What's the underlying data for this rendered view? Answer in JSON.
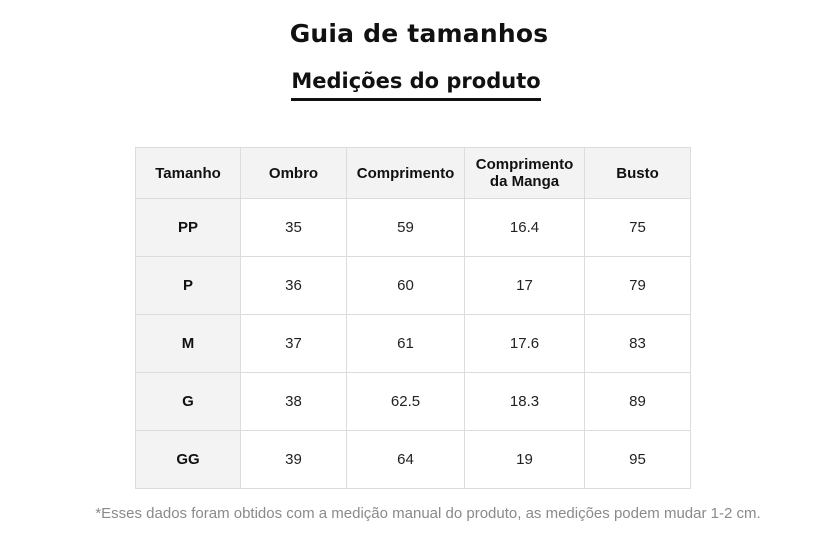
{
  "page": {
    "title": "Guia de tamanhos",
    "subtitle": "Medições do produto",
    "note": "*Esses dados foram obtidos com a medição manual do produto, as medições podem mudar 1-2 cm."
  },
  "table": {
    "headers": [
      "Tamanho",
      "Ombro",
      "Comprimento",
      "Comprimento\nda Manga",
      "Busto"
    ],
    "rows": [
      [
        "PP",
        "35",
        "59",
        "16.4",
        "75"
      ],
      [
        "P",
        "36",
        "60",
        "17",
        "79"
      ],
      [
        "M",
        "37",
        "61",
        "17.6",
        "83"
      ],
      [
        "G",
        "38",
        "62.5",
        "18.3",
        "89"
      ],
      [
        "GG",
        "39",
        "64",
        "19",
        "95"
      ]
    ]
  },
  "colors": {
    "header_bg": "#f3f3f3",
    "border": "#dcdcdc",
    "note_text": "#8a8a8a",
    "text": "#111111"
  }
}
